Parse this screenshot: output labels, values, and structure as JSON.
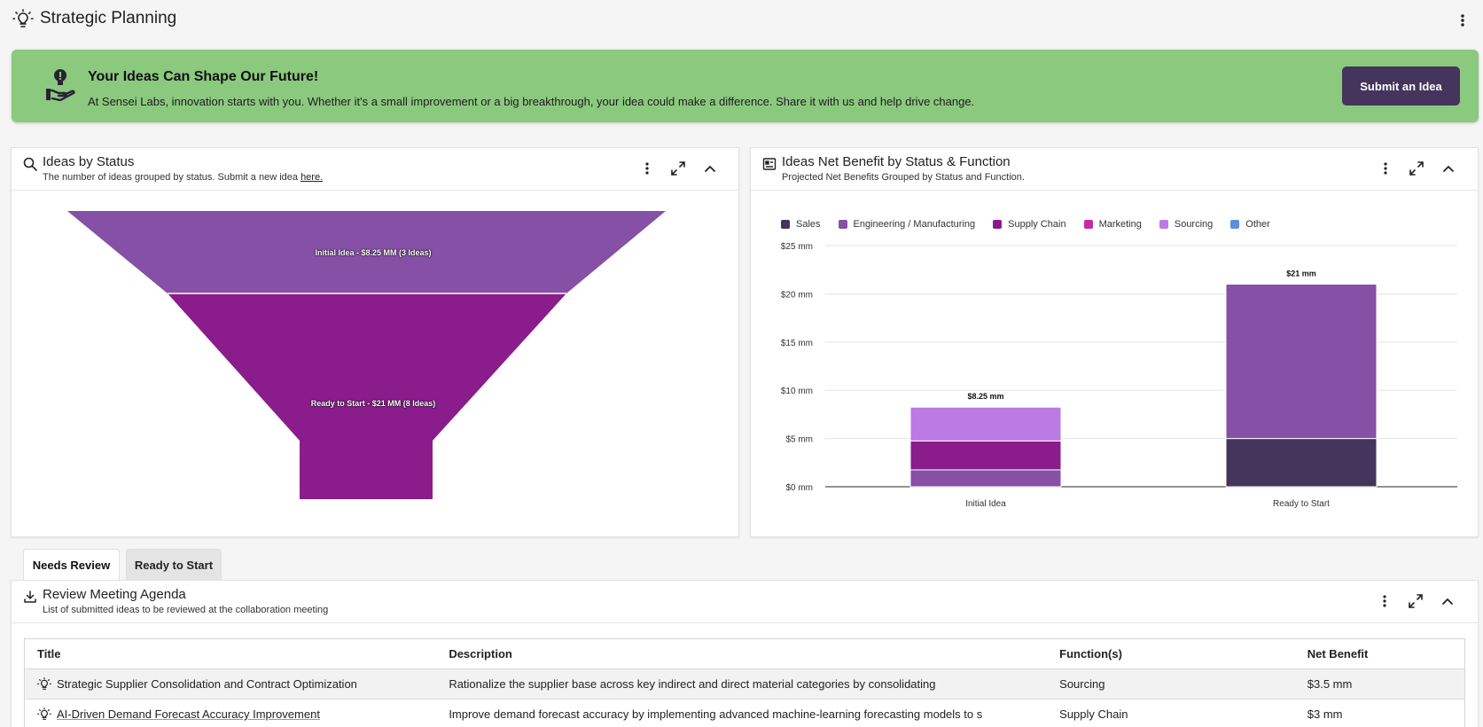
{
  "app": {
    "title": "Strategic Planning"
  },
  "banner": {
    "title": "Your Ideas Can Shape Our Future!",
    "text": "At Sensei Labs, innovation starts with you. Whether it's a small improvement or a big breakthrough, your idea could make a difference. Share it with us and help drive change.",
    "button_label": "Submit an Idea"
  },
  "funnel_card": {
    "title": "Ideas by Status",
    "subtitle_prefix": "The number of ideas grouped by status. Submit a new idea ",
    "subtitle_link": "here.",
    "stages": [
      {
        "label": "Initial Idea - $8.25 MM (3 Ideas)",
        "value": 8.25,
        "ideas": 3,
        "color": "#8550a6"
      },
      {
        "label": "Ready to Start - $21 MM (8 Ideas)",
        "value": 21,
        "ideas": 8,
        "color": "#8a1c8c"
      }
    ]
  },
  "bar_card": {
    "title": "Ideas Net Benefit by Status & Function",
    "subtitle": "Projected Net Benefits Grouped by Status and Function."
  },
  "chart_data": {
    "type": "bar",
    "stacked": true,
    "categories": [
      "Initial Idea",
      "Ready to Start"
    ],
    "series": [
      {
        "name": "Sales",
        "color": "#45345c",
        "values": [
          0,
          5
        ]
      },
      {
        "name": "Engineering / Manufacturing",
        "color": "#8550a6",
        "values": [
          1.75,
          16
        ]
      },
      {
        "name": "Supply Chain",
        "color": "#8a1c8c",
        "values": [
          3,
          0
        ]
      },
      {
        "name": "Marketing",
        "color": "#c52ba6",
        "values": [
          0,
          0
        ]
      },
      {
        "name": "Sourcing",
        "color": "#bc7ae4",
        "values": [
          3.5,
          0
        ]
      },
      {
        "name": "Other",
        "color": "#5b8ee0",
        "values": [
          0,
          0
        ]
      }
    ],
    "totals": [
      "$8.25 mm",
      "$21 mm"
    ],
    "yticks": [
      "$0 mm",
      "$5 mm",
      "$10 mm",
      "$15 mm",
      "$20 mm",
      "$25 mm"
    ],
    "ylim": [
      0,
      25
    ],
    "grid": true,
    "legend_position": "top-left"
  },
  "tabs": [
    {
      "label": "Needs Review",
      "active": true
    },
    {
      "label": "Ready to Start",
      "active": false
    }
  ],
  "agenda_card": {
    "title": "Review Meeting Agenda",
    "subtitle": "List of submitted ideas to be reviewed at the collaboration meeting",
    "columns": [
      "Title",
      "Description",
      "Function(s)",
      "Net Benefit"
    ],
    "rows": [
      {
        "title": "Strategic Supplier Consolidation and Contract Optimization",
        "description": "Rationalize the supplier base across key indirect and direct material categories by consolidating",
        "function": "Sourcing",
        "net_benefit": "$3.5 mm"
      },
      {
        "title": "AI-Driven Demand Forecast Accuracy Improvement",
        "description": "Improve demand forecast accuracy by implementing advanced machine-learning forecasting models to s",
        "function": "Supply Chain",
        "net_benefit": "$3 mm"
      }
    ]
  }
}
